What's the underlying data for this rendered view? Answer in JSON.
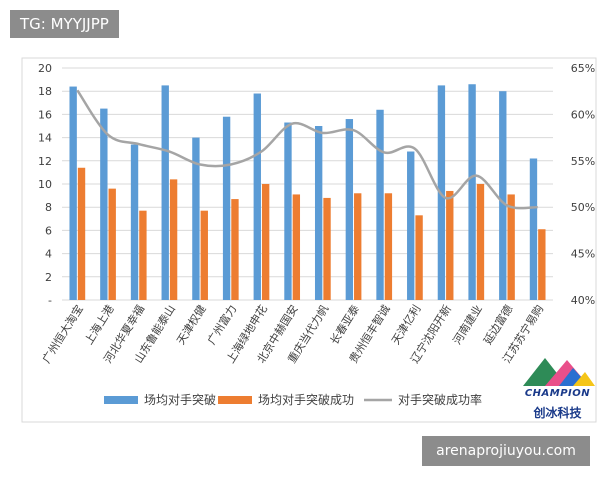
{
  "overlay": {
    "tag": "TG: MYYJJPP",
    "watermark": "arenaprojiuyou.com"
  },
  "logo": {
    "wordmark": "CHAMPION",
    "cn": "创冰科技"
  },
  "colors": {
    "bar1": "#5b9bd5",
    "bar2": "#ed7d31",
    "line": "#a5a5a5"
  },
  "chart_data": {
    "type": "bar",
    "categories": [
      "广州恒大淘宝",
      "上海上港",
      "河北华夏幸福",
      "山东鲁能泰山",
      "天津权健",
      "广州富力",
      "上海绿地申花",
      "北京中赫国安",
      "重庆当代力帆",
      "长春亚泰",
      "贵州恒丰智诚",
      "天津亿利",
      "辽宁沈阳开新",
      "河南建业",
      "延边富德",
      "江苏苏宁易购"
    ],
    "series": [
      {
        "name": "场均对手突破",
        "type": "bar",
        "axis": "left",
        "values": [
          18.4,
          16.5,
          13.4,
          18.5,
          14.0,
          15.8,
          17.8,
          15.3,
          15.0,
          15.6,
          16.4,
          12.8,
          18.5,
          18.6,
          18.0,
          12.2
        ]
      },
      {
        "name": "场均对手突破成功",
        "type": "bar",
        "axis": "left",
        "values": [
          11.4,
          9.6,
          7.7,
          10.4,
          7.7,
          8.7,
          10.0,
          9.1,
          8.8,
          9.2,
          9.2,
          7.3,
          9.4,
          10.0,
          9.1,
          6.1
        ]
      },
      {
        "name": "对手突破成功率",
        "type": "line",
        "axis": "right",
        "values": [
          62.6,
          57.8,
          56.8,
          56.0,
          54.6,
          54.6,
          56.0,
          59.0,
          58.0,
          58.3,
          55.9,
          56.3,
          51.0,
          53.4,
          50.2,
          50.0
        ]
      }
    ],
    "y_left": {
      "ticks": [
        "-",
        "2",
        "4",
        "6",
        "8",
        "10",
        "12",
        "14",
        "16",
        "18",
        "20"
      ],
      "ylim": [
        0,
        20
      ]
    },
    "y_right": {
      "ticks": [
        "40%",
        "45%",
        "50%",
        "55%",
        "60%",
        "65%"
      ],
      "ylim": [
        40,
        65
      ]
    },
    "grid": true,
    "legend": "bottom"
  }
}
